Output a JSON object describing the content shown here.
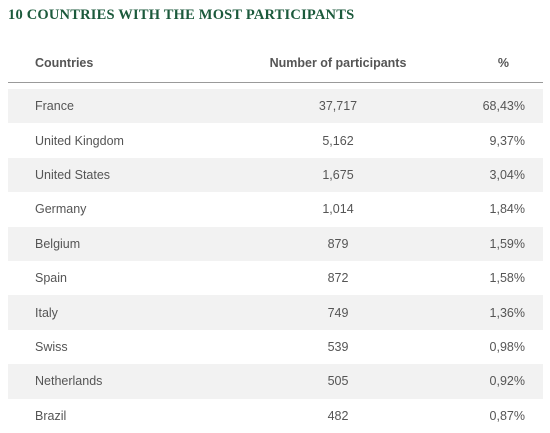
{
  "title": "10 COUNTRIES WITH THE MOST PARTICIPANTS",
  "table": {
    "headers": {
      "country": "Countries",
      "count": "Number of participants",
      "percent": "%"
    },
    "rows": [
      {
        "country": "France",
        "count": "37,717",
        "percent": "68,43%"
      },
      {
        "country": "United Kingdom",
        "count": "5,162",
        "percent": "9,37%"
      },
      {
        "country": "United States",
        "count": "1,675",
        "percent": "3,04%"
      },
      {
        "country": "Germany",
        "count": "1,014",
        "percent": "1,84%"
      },
      {
        "country": "Belgium",
        "count": "879",
        "percent": "1,59%"
      },
      {
        "country": "Spain",
        "count": "872",
        "percent": "1,58%"
      },
      {
        "country": "Italy",
        "count": "749",
        "percent": "1,36%"
      },
      {
        "country": "Swiss",
        "count": "539",
        "percent": "0,98%"
      },
      {
        "country": "Netherlands",
        "count": "505",
        "percent": "0,92%"
      },
      {
        "country": "Brazil",
        "count": "482",
        "percent": "0,87%"
      }
    ]
  }
}
